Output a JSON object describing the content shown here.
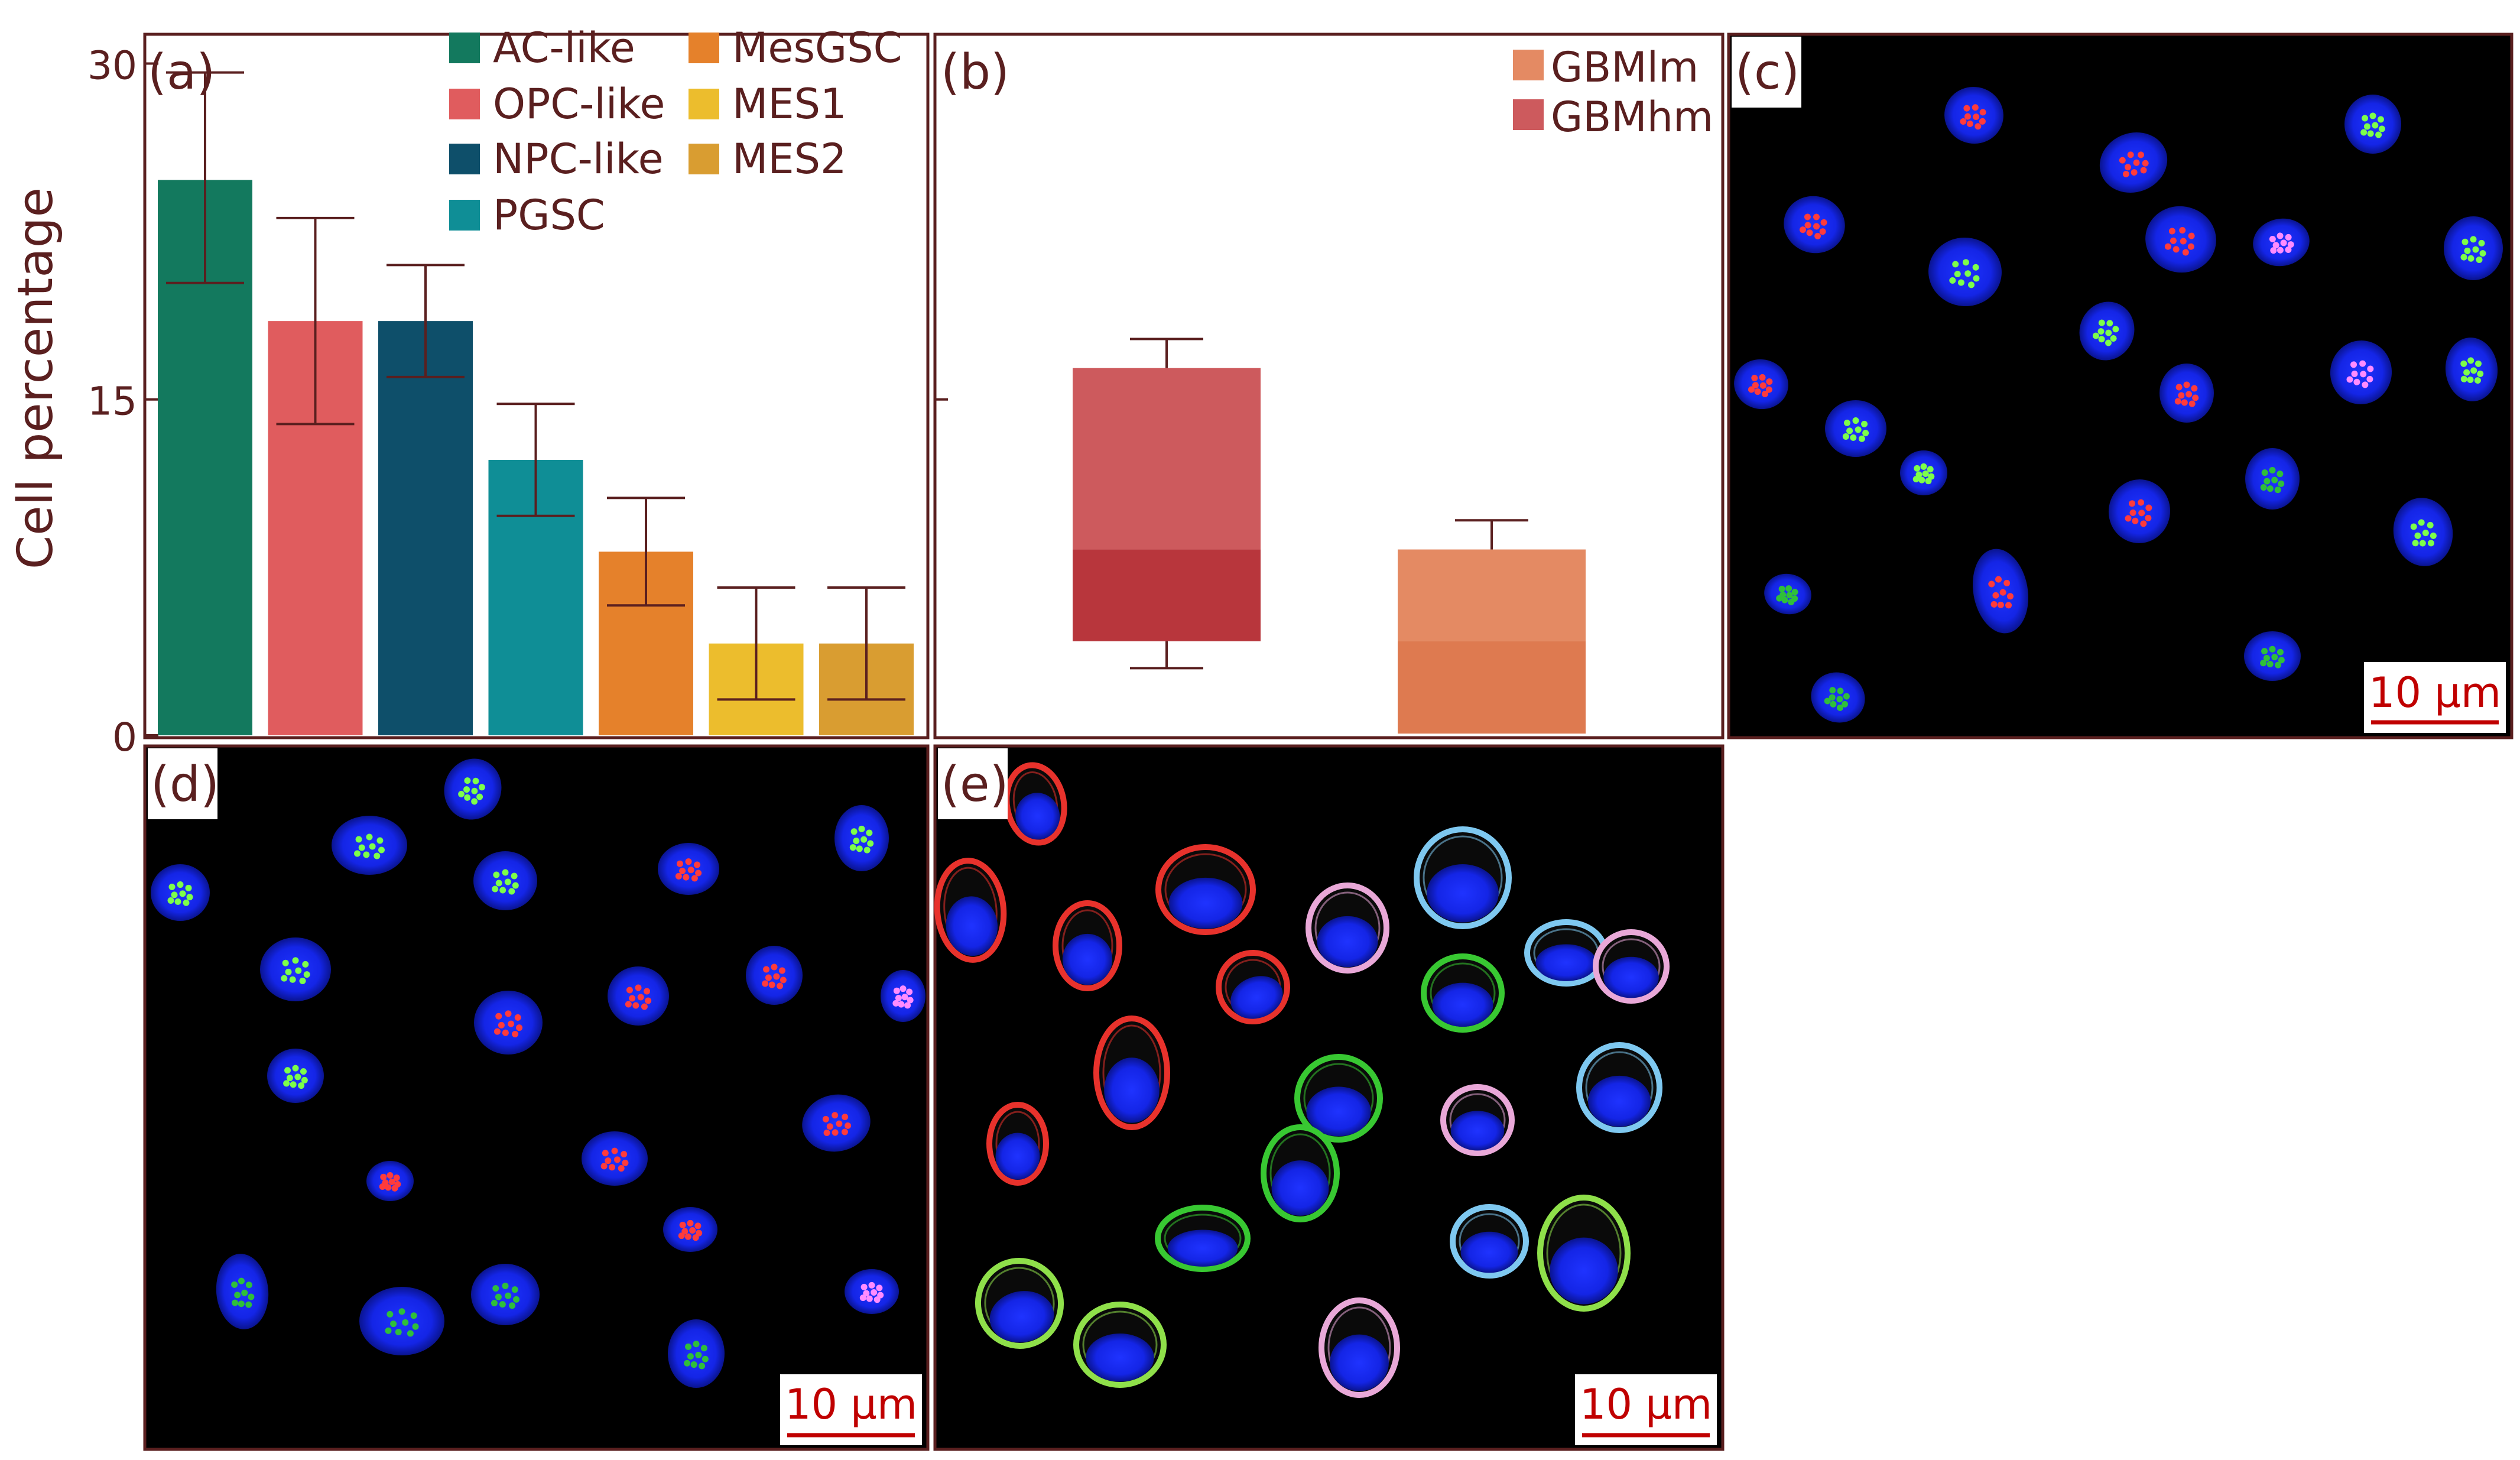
{
  "figure": {
    "ylabel": "Cell percentage",
    "panel_labels": [
      "(a)",
      "(b)",
      "(c)",
      "(d)",
      "(e)"
    ],
    "scale_bar_text": "10 μm"
  },
  "chart_data": [
    {
      "panel": "(a)",
      "type": "bar",
      "categories": [
        "AC-like",
        "OPC-like",
        "NPC-like",
        "PGSC",
        "MesGSC",
        "MES1",
        "MES2"
      ],
      "values": [
        24.8,
        18.5,
        18.5,
        12.3,
        8.2,
        4.1,
        4.1
      ],
      "err_low": [
        20.2,
        13.9,
        16.0,
        9.8,
        5.8,
        1.6,
        1.6
      ],
      "err_high": [
        29.6,
        23.1,
        21.0,
        14.8,
        10.6,
        6.6,
        6.6
      ],
      "colors": [
        "#13795e",
        "#e05c5e",
        "#0e4f6a",
        "#0f8e96",
        "#e5812b",
        "#ecbd2d",
        "#d99d31"
      ],
      "yticks": [
        0,
        15,
        30
      ],
      "ylim": [
        0,
        31.2
      ],
      "ylabel": "Cell percentage",
      "legend": "top-right",
      "grid": false
    },
    {
      "panel": "(b)",
      "type": "box",
      "series": [
        {
          "name": "GBMlm",
          "colors": [
            "#e48a63",
            "#de7a50"
          ]
        },
        {
          "name": "GBMhm",
          "colors": [
            "#cd5a5d",
            "#b8363c"
          ]
        }
      ],
      "boxes": [
        {
          "series": "GBMhm",
          "min": 3.0,
          "q1": 4.2,
          "median": 8.3,
          "q3": 16.4,
          "max": 17.7
        },
        {
          "series": "GBMlm",
          "min": 0,
          "q1": 0,
          "median": 4.2,
          "q3": 8.3,
          "max": 9.6
        }
      ],
      "ylim": [
        0,
        31.2
      ],
      "legend": "top-right",
      "grid": false
    }
  ]
}
